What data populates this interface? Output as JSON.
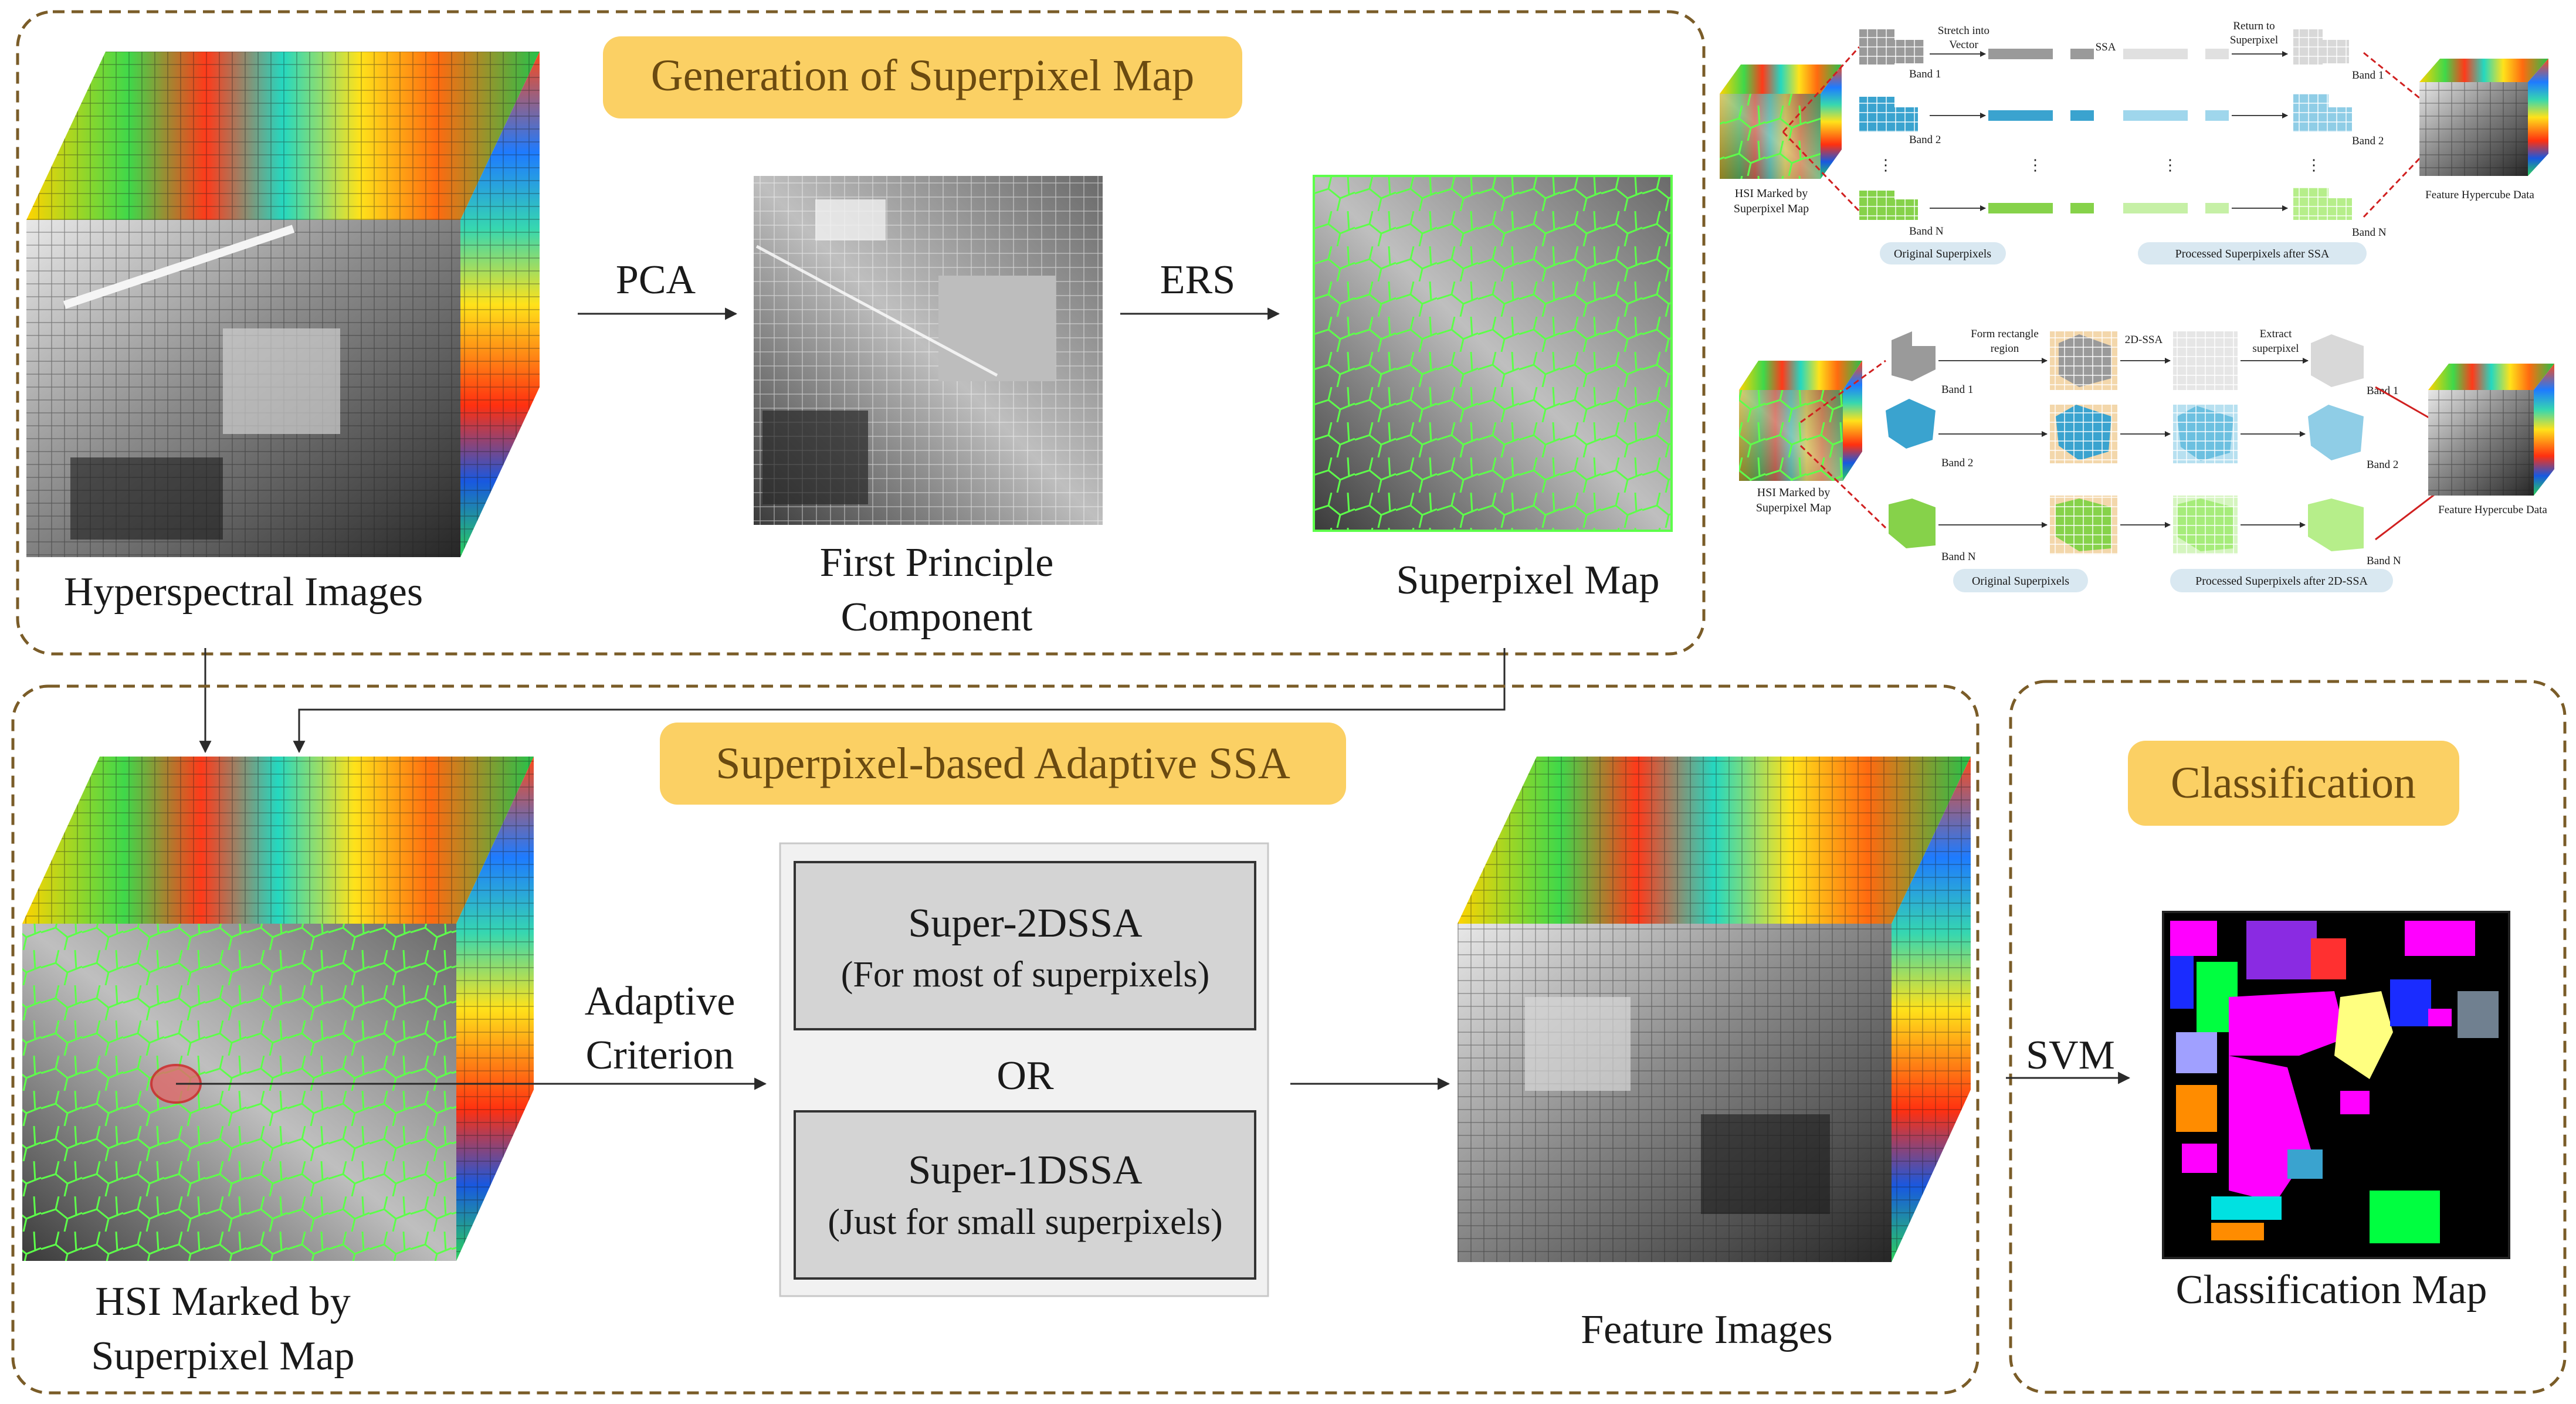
{
  "panels": {
    "generation": {
      "title": "Generation of Superpixel Map",
      "hsi_label": "Hyperspectral Images",
      "pca_label": "PCA",
      "ers_label": "ERS",
      "pc_label_line1": "First Principle",
      "pc_label_line2": "Component",
      "superpixel_label": "Superpixel Map"
    },
    "ssa": {
      "title": "Superpixel-based Adaptive SSA",
      "hsi_marked_line1": "HSI Marked by",
      "hsi_marked_line2": "Superpixel Map",
      "criterion_line1": "Adaptive",
      "criterion_line2": "Criterion",
      "option1_line1": "Super-2DSSA",
      "option1_line2": "(For most of superpixels)",
      "or_label": "OR",
      "option2_line1": "Super-1DSSA",
      "option2_line2": "(Just for small superpixels)",
      "feature_label": "Feature Images"
    },
    "classification": {
      "title": "Classification",
      "svm_label": "SVM",
      "map_label": "Classification Map"
    }
  },
  "detail_1dssa": {
    "stretch_line1": "Stretch into",
    "stretch_line2": "Vector",
    "ssa_label": "SSA",
    "return_line1": "Return to",
    "return_line2": "Superpixel",
    "band1": "Band 1",
    "band2": "Band 2",
    "bandN": "Band N",
    "hsi_line1": "HSI Marked by",
    "hsi_line2": "Superpixel Map",
    "feature_label": "Feature Hypercube Data",
    "original_pill": "Original Superpixels",
    "processed_pill": "Processed Superpixels after SSA"
  },
  "detail_2dssa": {
    "form_line1": "Form rectangle",
    "form_line2": "region",
    "ssa_label": "2D-SSA",
    "extract_line1": "Extract",
    "extract_line2": "superpixel",
    "band1": "Band 1",
    "band2": "Band 2",
    "bandN": "Band N",
    "hsi_line1": "HSI Marked by",
    "hsi_line2": "Superpixel Map",
    "feature_label": "Feature Hypercube Data",
    "original_pill": "Original Superpixels",
    "processed_pill": "Processed Superpixels after 2D-SSA"
  },
  "colors": {
    "panel_border": "#7a5c28",
    "title_fill": "#fbd064",
    "title_text": "#6a4a10",
    "pill_fill": "#d9e8f1",
    "band1": "#9a9a9a",
    "band2": "#3aa3cf",
    "bandN": "#86d24a",
    "class_palette": [
      "#ff00ff",
      "#ff3030",
      "#1a2cff",
      "#00e1e1",
      "#00ff40",
      "#8a2be2",
      "#ffff80",
      "#ff8c00",
      "#a0a0ff",
      "#708090"
    ]
  }
}
